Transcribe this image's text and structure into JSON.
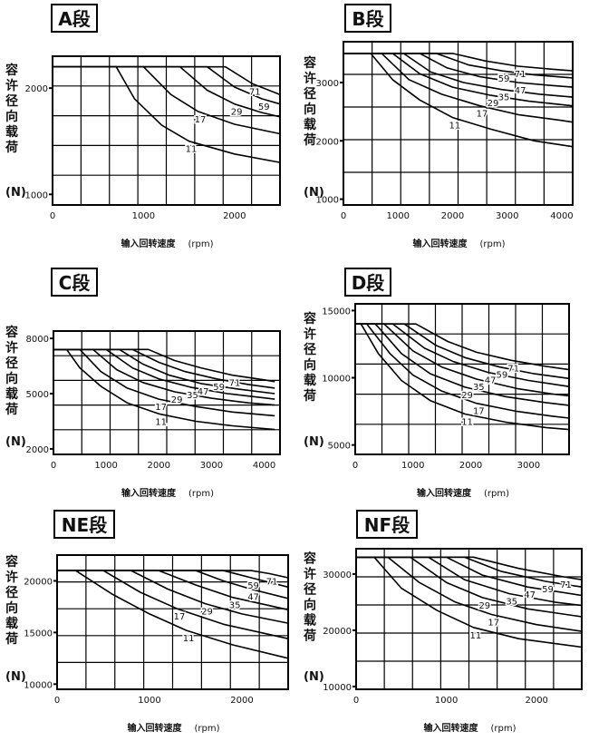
{
  "figure": {
    "ylabel": "容许径向载荷",
    "yunit": "(N)",
    "xlabel": "输入回转速度",
    "xunit": "(rpm)"
  },
  "chart_data": [
    {
      "type": "line",
      "title": "A段",
      "xlim": [
        0,
        2500
      ],
      "ylim": [
        900,
        2300
      ],
      "xticks": [
        0,
        1000,
        2000
      ],
      "yticks": [
        1000,
        2000
      ],
      "ylabel": "容许径向载荷 (N)",
      "xlabel": "输入回转速度 (rpm)",
      "series": [
        {
          "name": "11",
          "x": [
            700,
            900,
            1200,
            1500,
            2000,
            2500
          ],
          "y": [
            2200,
            1900,
            1650,
            1500,
            1380,
            1300
          ]
        },
        {
          "name": "17",
          "x": [
            1000,
            1300,
            1600,
            2000,
            2500
          ],
          "y": [
            2200,
            1940,
            1780,
            1660,
            1570
          ]
        },
        {
          "name": "29",
          "x": [
            1400,
            1700,
            2000,
            2300,
            2500
          ],
          "y": [
            2200,
            1980,
            1850,
            1770,
            1730
          ]
        },
        {
          "name": "59",
          "x": [
            1700,
            2000,
            2300,
            2500
          ],
          "y": [
            2200,
            2010,
            1900,
            1850
          ]
        },
        {
          "name": "71",
          "x": [
            1900,
            2200,
            2500
          ],
          "y": [
            2200,
            2040,
            1940
          ]
        }
      ]
    },
    {
      "type": "line",
      "title": "B段",
      "xlim": [
        0,
        4200
      ],
      "ylim": [
        900,
        3700
      ],
      "xticks": [
        0,
        1000,
        2000,
        3000,
        4000
      ],
      "yticks": [
        1000,
        2000,
        3000
      ],
      "ylabel": "容许径向载荷 (N)",
      "xlabel": "输入回转速度 (rpm)",
      "series": [
        {
          "name": "11",
          "x": [
            500,
            900,
            1400,
            2000,
            2700,
            3500,
            4200
          ],
          "y": [
            3500,
            3050,
            2700,
            2400,
            2200,
            2000,
            1900
          ]
        },
        {
          "name": "17",
          "x": [
            700,
            1200,
            1800,
            2500,
            3200,
            4000,
            4200
          ],
          "y": [
            3500,
            3050,
            2800,
            2600,
            2450,
            2350,
            2320
          ]
        },
        {
          "name": "29",
          "x": [
            900,
            1400,
            2000,
            2700,
            3400,
            4200
          ],
          "y": [
            3500,
            3150,
            2920,
            2780,
            2680,
            2600
          ]
        },
        {
          "name": "35",
          "x": [
            1100,
            1600,
            2200,
            2900,
            3600,
            4200
          ],
          "y": [
            3500,
            3180,
            3000,
            2880,
            2800,
            2750
          ]
        },
        {
          "name": "47",
          "x": [
            1400,
            1900,
            2500,
            3200,
            3800,
            4200
          ],
          "y": [
            3500,
            3250,
            3100,
            3000,
            2950,
            2920
          ]
        },
        {
          "name": "59",
          "x": [
            1700,
            2300,
            2900,
            3500,
            4200
          ],
          "y": [
            3500,
            3300,
            3200,
            3130,
            3080
          ]
        },
        {
          "name": "71",
          "x": [
            2000,
            2600,
            3200,
            3800,
            4200
          ],
          "y": [
            3500,
            3370,
            3280,
            3230,
            3200
          ]
        }
      ]
    },
    {
      "type": "line",
      "title": "C段",
      "xlim": [
        0,
        4300
      ],
      "ylim": [
        1700,
        8400
      ],
      "xticks": [
        0,
        1000,
        2000,
        3000,
        4000
      ],
      "yticks": [
        2000,
        5000,
        8000
      ],
      "ylabel": "容许径向载荷 (N)",
      "xlabel": "输入回转速度 (rpm)",
      "series": [
        {
          "name": "11",
          "x": [
            250,
            500,
            900,
            1400,
            2000,
            2700,
            3400,
            4200
          ],
          "y": [
            7400,
            6400,
            5400,
            4500,
            3900,
            3500,
            3250,
            3050
          ]
        },
        {
          "name": "17",
          "x": [
            500,
            900,
            1400,
            2000,
            2700,
            3400,
            4200
          ],
          "y": [
            7400,
            6200,
            5300,
            4700,
            4300,
            4000,
            3800
          ]
        },
        {
          "name": "29",
          "x": [
            750,
            1200,
            1700,
            2300,
            3000,
            3700,
            4200
          ],
          "y": [
            7400,
            6300,
            5600,
            5100,
            4750,
            4500,
            4380
          ]
        },
        {
          "name": "35",
          "x": [
            1000,
            1500,
            2000,
            2600,
            3300,
            4200
          ],
          "y": [
            7400,
            6400,
            5800,
            5350,
            5000,
            4700
          ]
        },
        {
          "name": "47",
          "x": [
            1250,
            1700,
            2200,
            2800,
            3500,
            4200
          ],
          "y": [
            7400,
            6600,
            6000,
            5550,
            5250,
            5000
          ]
        },
        {
          "name": "59",
          "x": [
            1500,
            2000,
            2500,
            3100,
            3700,
            4200
          ],
          "y": [
            7400,
            6700,
            6200,
            5800,
            5500,
            5300
          ]
        },
        {
          "name": "71",
          "x": [
            1800,
            2300,
            2800,
            3400,
            4000,
            4200
          ],
          "y": [
            7400,
            6800,
            6400,
            6000,
            5750,
            5650
          ]
        }
      ]
    },
    {
      "type": "line",
      "title": "D段",
      "xlim": [
        0,
        3700
      ],
      "ylim": [
        4300,
        15500
      ],
      "xticks": [
        0,
        1000,
        2000,
        3000
      ],
      "yticks": [
        5000,
        10000,
        15000
      ],
      "ylabel": "容许径向载荷 (N)",
      "xlabel": "输入回转速度 (rpm)",
      "series": [
        {
          "name": "11",
          "x": [
            100,
            400,
            800,
            1300,
            1900,
            2600,
            3300,
            3700
          ],
          "y": [
            14000,
            11800,
            9800,
            8300,
            7300,
            6700,
            6300,
            6150
          ]
        },
        {
          "name": "17",
          "x": [
            200,
            600,
            1000,
            1500,
            2100,
            2800,
            3400,
            3700
          ],
          "y": [
            14000,
            11800,
            10200,
            9000,
            8100,
            7500,
            7150,
            7000
          ]
        },
        {
          "name": "29",
          "x": [
            350,
            800,
            1300,
            1900,
            2600,
            3300,
            3700
          ],
          "y": [
            14000,
            11800,
            10300,
            9300,
            8600,
            8150,
            7950
          ]
        },
        {
          "name": "35",
          "x": [
            500,
            1000,
            1500,
            2100,
            2800,
            3400,
            3700
          ],
          "y": [
            14000,
            12000,
            10800,
            9900,
            9200,
            8800,
            8650
          ]
        },
        {
          "name": "47",
          "x": [
            650,
            1200,
            1700,
            2300,
            3000,
            3700
          ],
          "y": [
            14000,
            12200,
            11200,
            10400,
            9800,
            9350
          ]
        },
        {
          "name": "59",
          "x": [
            850,
            1400,
            1900,
            2500,
            3100,
            3700
          ],
          "y": [
            14000,
            12400,
            11500,
            10800,
            10300,
            9950
          ]
        },
        {
          "name": "71",
          "x": [
            1050,
            1600,
            2100,
            2700,
            3300,
            3700
          ],
          "y": [
            14000,
            12700,
            11900,
            11300,
            10850,
            10600
          ]
        }
      ]
    },
    {
      "type": "line",
      "title": "NE段",
      "xlim": [
        0,
        2500
      ],
      "ylim": [
        9500,
        22500
      ],
      "xticks": [
        0,
        1000,
        2000
      ],
      "yticks": [
        10000,
        15000,
        20000
      ],
      "ylabel": "容许径向载荷 (N)",
      "xlabel": "输入回转速度 (rpm)",
      "series": [
        {
          "name": "11",
          "x": [
            200,
            600,
            1000,
            1400,
            1900,
            2500
          ],
          "y": [
            21000,
            18700,
            16800,
            15200,
            13800,
            12500
          ]
        },
        {
          "name": "17",
          "x": [
            500,
            900,
            1300,
            1800,
            2500
          ],
          "y": [
            21000,
            18900,
            17300,
            15800,
            14400
          ]
        },
        {
          "name": "29",
          "x": [
            800,
            1200,
            1600,
            2000,
            2500
          ],
          "y": [
            21000,
            19200,
            17800,
            16800,
            15900
          ]
        },
        {
          "name": "35",
          "x": [
            1100,
            1500,
            1900,
            2500
          ],
          "y": [
            21000,
            19600,
            18400,
            17200
          ]
        },
        {
          "name": "47",
          "x": [
            1500,
            1800,
            2100,
            2500
          ],
          "y": [
            21000,
            20000,
            19200,
            18300
          ]
        },
        {
          "name": "59",
          "x": [
            1800,
            2100,
            2500
          ],
          "y": [
            21000,
            20300,
            19400
          ]
        },
        {
          "name": "71",
          "x": [
            2100,
            2300,
            2500
          ],
          "y": [
            21000,
            20700,
            20300
          ]
        }
      ]
    },
    {
      "type": "line",
      "title": "NF段",
      "xlim": [
        0,
        2500
      ],
      "ylim": [
        9500,
        34500
      ],
      "xticks": [
        0,
        1000,
        2000
      ],
      "yticks": [
        10000,
        20000,
        30000
      ],
      "ylabel": "容许径向载荷 (N)",
      "xlabel": "输入回转速度 (rpm)",
      "series": [
        {
          "name": "11",
          "x": [
            200,
            500,
            900,
            1300,
            1800,
            2500
          ],
          "y": [
            33000,
            27500,
            23500,
            20500,
            18500,
            17000
          ]
        },
        {
          "name": "17",
          "x": [
            350,
            700,
            1100,
            1500,
            2000,
            2500
          ],
          "y": [
            33000,
            28500,
            25000,
            22800,
            21000,
            19800
          ]
        },
        {
          "name": "29",
          "x": [
            600,
            1000,
            1400,
            1900,
            2500
          ],
          "y": [
            33000,
            28500,
            25800,
            23800,
            22400
          ]
        },
        {
          "name": "35",
          "x": [
            800,
            1200,
            1700,
            2200,
            2500
          ],
          "y": [
            33000,
            29000,
            26500,
            25000,
            24400
          ]
        },
        {
          "name": "47",
          "x": [
            1000,
            1400,
            1900,
            2500
          ],
          "y": [
            33000,
            29800,
            27700,
            26200
          ]
        },
        {
          "name": "59",
          "x": [
            1200,
            1600,
            2100,
            2500
          ],
          "y": [
            33000,
            30500,
            28700,
            27700
          ]
        },
        {
          "name": "71",
          "x": [
            1300,
            1800,
            2300,
            2500
          ],
          "y": [
            33000,
            31000,
            29500,
            29000
          ]
        }
      ]
    }
  ]
}
